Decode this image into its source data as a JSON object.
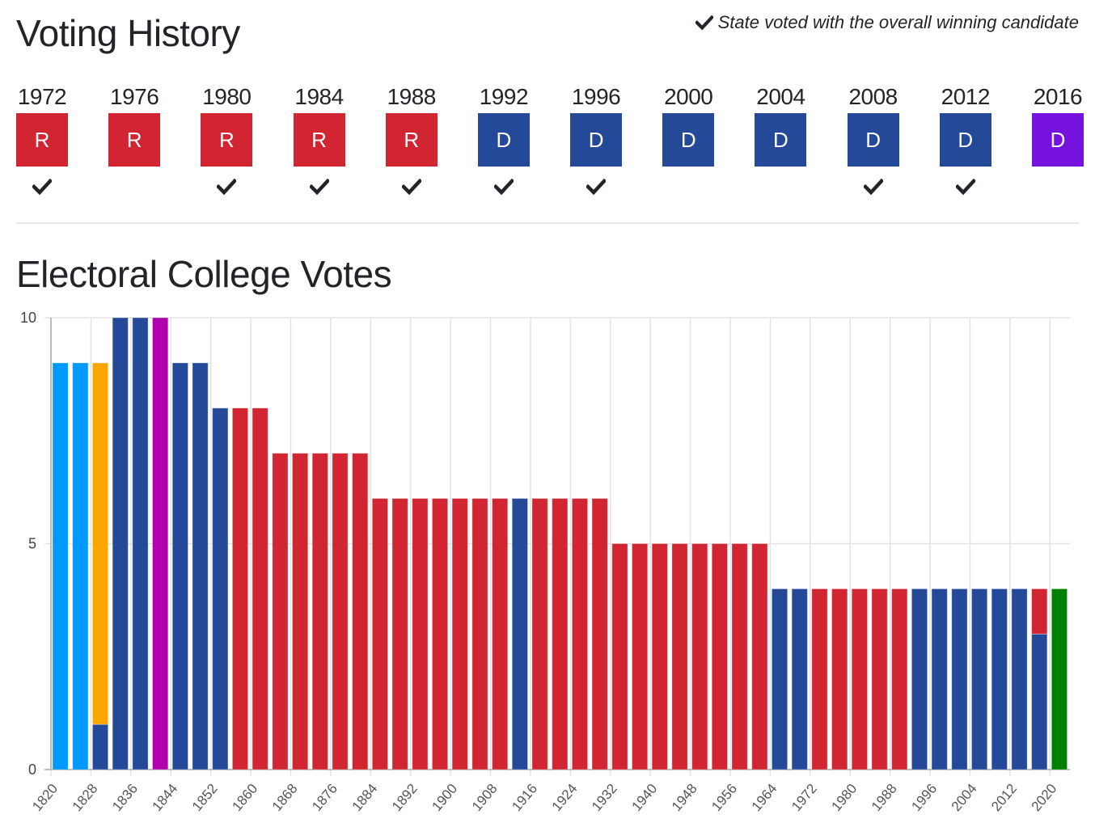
{
  "voting_history": {
    "title": "Voting History",
    "legend_icon": "check-icon",
    "legend_text": "State voted with the overall winning candidate",
    "colors": {
      "R": "#d22532",
      "D": "#244999",
      "D_2016": "#7512dd"
    },
    "years": [
      {
        "year": "1972",
        "party": "R",
        "color": "#d22532",
        "won": true
      },
      {
        "year": "1976",
        "party": "R",
        "color": "#d22532",
        "won": false
      },
      {
        "year": "1980",
        "party": "R",
        "color": "#d22532",
        "won": true
      },
      {
        "year": "1984",
        "party": "R",
        "color": "#d22532",
        "won": true
      },
      {
        "year": "1988",
        "party": "R",
        "color": "#d22532",
        "won": true
      },
      {
        "year": "1992",
        "party": "D",
        "color": "#244999",
        "won": true
      },
      {
        "year": "1996",
        "party": "D",
        "color": "#244999",
        "won": true
      },
      {
        "year": "2000",
        "party": "D",
        "color": "#244999",
        "won": false
      },
      {
        "year": "2004",
        "party": "D",
        "color": "#244999",
        "won": false
      },
      {
        "year": "2008",
        "party": "D",
        "color": "#244999",
        "won": true
      },
      {
        "year": "2012",
        "party": "D",
        "color": "#244999",
        "won": true
      },
      {
        "year": "2016",
        "party": "D",
        "color": "#7512dd",
        "won": false
      }
    ]
  },
  "electoral": {
    "title": "Electoral College Votes"
  },
  "chart_data": {
    "type": "bar",
    "stacked": true,
    "title": "Electoral College Votes",
    "xlabel": "",
    "ylabel": "",
    "ylim": [
      0,
      10
    ],
    "yticks": [
      0,
      5,
      10
    ],
    "xlim": [
      1820,
      2024
    ],
    "xticks": [
      1820,
      1828,
      1836,
      1844,
      1852,
      1860,
      1868,
      1876,
      1884,
      1892,
      1900,
      1908,
      1916,
      1924,
      1932,
      1940,
      1948,
      1956,
      1964,
      1972,
      1980,
      1988,
      1996,
      2004,
      2012,
      2020
    ],
    "grid": true,
    "legend": "none",
    "colors": {
      "dem_rep": "#0099ff",
      "democratic": "#244999",
      "national_republican": "#ffa500",
      "whig": "#b000b0",
      "republican": "#d22532",
      "other": "#008000"
    },
    "bars": [
      {
        "year": 1820,
        "segments": [
          {
            "value": 9,
            "color": "#0099ff"
          }
        ]
      },
      {
        "year": 1824,
        "segments": [
          {
            "value": 9,
            "color": "#0099ff"
          }
        ]
      },
      {
        "year": 1828,
        "segments": [
          {
            "value": 1,
            "color": "#244999"
          },
          {
            "value": 8,
            "color": "#ffa500"
          }
        ]
      },
      {
        "year": 1832,
        "segments": [
          {
            "value": 10,
            "color": "#244999"
          }
        ]
      },
      {
        "year": 1836,
        "segments": [
          {
            "value": 10,
            "color": "#244999"
          }
        ]
      },
      {
        "year": 1840,
        "segments": [
          {
            "value": 10,
            "color": "#b000b0"
          }
        ]
      },
      {
        "year": 1844,
        "segments": [
          {
            "value": 9,
            "color": "#244999"
          }
        ]
      },
      {
        "year": 1848,
        "segments": [
          {
            "value": 9,
            "color": "#244999"
          }
        ]
      },
      {
        "year": 1852,
        "segments": [
          {
            "value": 8,
            "color": "#244999"
          }
        ]
      },
      {
        "year": 1856,
        "segments": [
          {
            "value": 8,
            "color": "#d22532"
          }
        ]
      },
      {
        "year": 1860,
        "segments": [
          {
            "value": 8,
            "color": "#d22532"
          }
        ]
      },
      {
        "year": 1864,
        "segments": [
          {
            "value": 7,
            "color": "#d22532"
          }
        ]
      },
      {
        "year": 1868,
        "segments": [
          {
            "value": 7,
            "color": "#d22532"
          }
        ]
      },
      {
        "year": 1872,
        "segments": [
          {
            "value": 7,
            "color": "#d22532"
          }
        ]
      },
      {
        "year": 1876,
        "segments": [
          {
            "value": 7,
            "color": "#d22532"
          }
        ]
      },
      {
        "year": 1880,
        "segments": [
          {
            "value": 7,
            "color": "#d22532"
          }
        ]
      },
      {
        "year": 1884,
        "segments": [
          {
            "value": 6,
            "color": "#d22532"
          }
        ]
      },
      {
        "year": 1888,
        "segments": [
          {
            "value": 6,
            "color": "#d22532"
          }
        ]
      },
      {
        "year": 1892,
        "segments": [
          {
            "value": 6,
            "color": "#d22532"
          }
        ]
      },
      {
        "year": 1896,
        "segments": [
          {
            "value": 6,
            "color": "#d22532"
          }
        ]
      },
      {
        "year": 1900,
        "segments": [
          {
            "value": 6,
            "color": "#d22532"
          }
        ]
      },
      {
        "year": 1904,
        "segments": [
          {
            "value": 6,
            "color": "#d22532"
          }
        ]
      },
      {
        "year": 1908,
        "segments": [
          {
            "value": 6,
            "color": "#d22532"
          }
        ]
      },
      {
        "year": 1912,
        "segments": [
          {
            "value": 6,
            "color": "#244999"
          }
        ]
      },
      {
        "year": 1916,
        "segments": [
          {
            "value": 6,
            "color": "#d22532"
          }
        ]
      },
      {
        "year": 1920,
        "segments": [
          {
            "value": 6,
            "color": "#d22532"
          }
        ]
      },
      {
        "year": 1924,
        "segments": [
          {
            "value": 6,
            "color": "#d22532"
          }
        ]
      },
      {
        "year": 1928,
        "segments": [
          {
            "value": 6,
            "color": "#d22532"
          }
        ]
      },
      {
        "year": 1932,
        "segments": [
          {
            "value": 5,
            "color": "#d22532"
          }
        ]
      },
      {
        "year": 1936,
        "segments": [
          {
            "value": 5,
            "color": "#d22532"
          }
        ]
      },
      {
        "year": 1940,
        "segments": [
          {
            "value": 5,
            "color": "#d22532"
          }
        ]
      },
      {
        "year": 1944,
        "segments": [
          {
            "value": 5,
            "color": "#d22532"
          }
        ]
      },
      {
        "year": 1948,
        "segments": [
          {
            "value": 5,
            "color": "#d22532"
          }
        ]
      },
      {
        "year": 1952,
        "segments": [
          {
            "value": 5,
            "color": "#d22532"
          }
        ]
      },
      {
        "year": 1956,
        "segments": [
          {
            "value": 5,
            "color": "#d22532"
          }
        ]
      },
      {
        "year": 1960,
        "segments": [
          {
            "value": 5,
            "color": "#d22532"
          }
        ]
      },
      {
        "year": 1964,
        "segments": [
          {
            "value": 4,
            "color": "#244999"
          }
        ]
      },
      {
        "year": 1968,
        "segments": [
          {
            "value": 4,
            "color": "#244999"
          }
        ]
      },
      {
        "year": 1972,
        "segments": [
          {
            "value": 4,
            "color": "#d22532"
          }
        ]
      },
      {
        "year": 1976,
        "segments": [
          {
            "value": 4,
            "color": "#d22532"
          }
        ]
      },
      {
        "year": 1980,
        "segments": [
          {
            "value": 4,
            "color": "#d22532"
          }
        ]
      },
      {
        "year": 1984,
        "segments": [
          {
            "value": 4,
            "color": "#d22532"
          }
        ]
      },
      {
        "year": 1988,
        "segments": [
          {
            "value": 4,
            "color": "#d22532"
          }
        ]
      },
      {
        "year": 1992,
        "segments": [
          {
            "value": 4,
            "color": "#244999"
          }
        ]
      },
      {
        "year": 1996,
        "segments": [
          {
            "value": 4,
            "color": "#244999"
          }
        ]
      },
      {
        "year": 2000,
        "segments": [
          {
            "value": 4,
            "color": "#244999"
          }
        ]
      },
      {
        "year": 2004,
        "segments": [
          {
            "value": 4,
            "color": "#244999"
          }
        ]
      },
      {
        "year": 2008,
        "segments": [
          {
            "value": 4,
            "color": "#244999"
          }
        ]
      },
      {
        "year": 2012,
        "segments": [
          {
            "value": 4,
            "color": "#244999"
          }
        ]
      },
      {
        "year": 2016,
        "segments": [
          {
            "value": 3,
            "color": "#244999"
          },
          {
            "value": 1,
            "color": "#d22532"
          }
        ]
      },
      {
        "year": 2020,
        "segments": [
          {
            "value": 4,
            "color": "#008000"
          }
        ]
      }
    ]
  }
}
